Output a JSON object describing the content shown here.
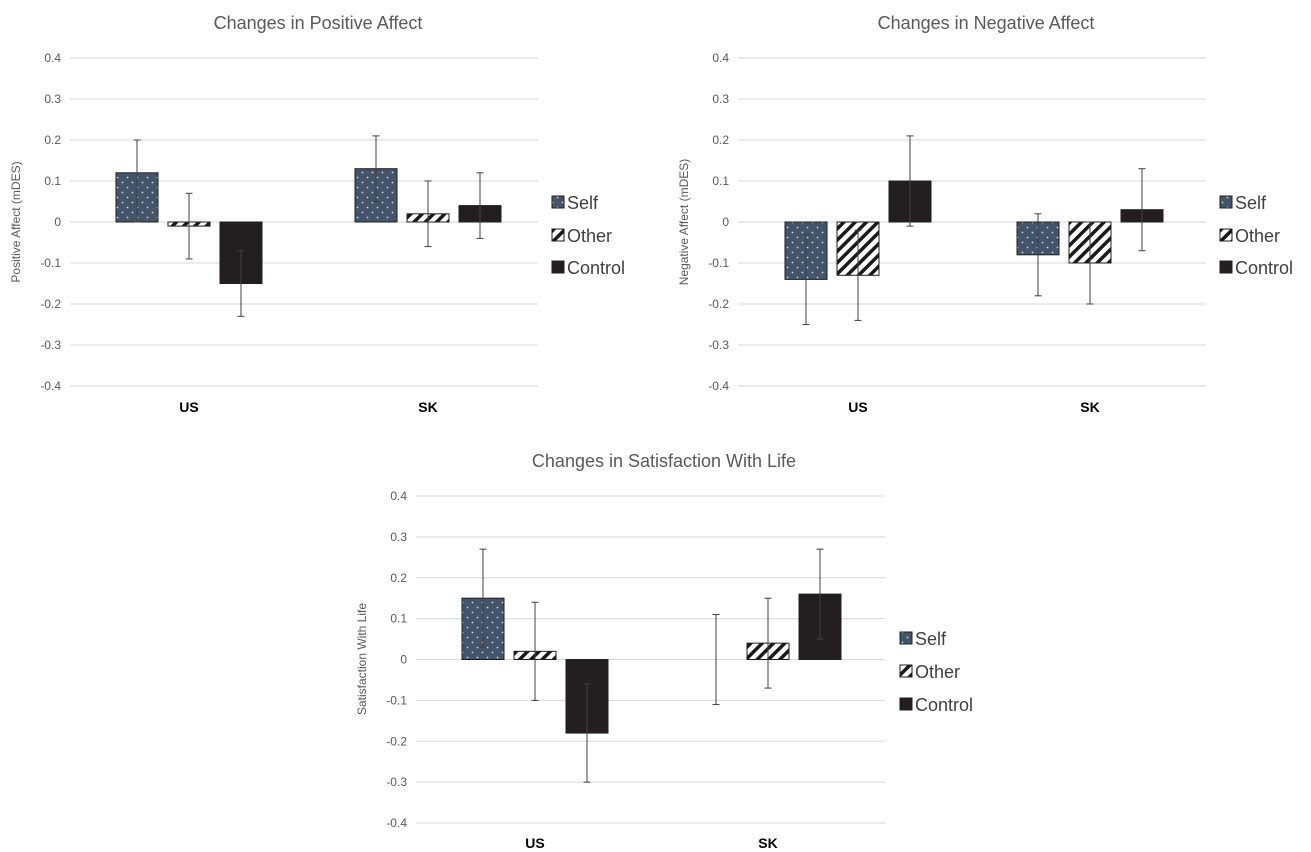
{
  "colors": {
    "self": "#44546a",
    "control": "#231f20",
    "grid": "#d9d9d9",
    "text": "#595959"
  },
  "chart_data": [
    {
      "type": "bar",
      "title": "Changes in Positive Affect",
      "ylabel": "Positive Affect (mDES)",
      "categories": [
        "US",
        "SK"
      ],
      "ylim": [
        -0.4,
        0.4
      ],
      "yticks": [
        "0.4",
        "0.3",
        "0.2",
        "0.1",
        "0",
        "-0.1",
        "-0.2",
        "-0.3",
        "-0.4"
      ],
      "grid": true,
      "legend_position": "right",
      "series": [
        {
          "name": "Self",
          "values": [
            0.12,
            0.13
          ],
          "err_low": [
            0.0,
            0.05
          ],
          "err_high": [
            0.2,
            0.21
          ]
        },
        {
          "name": "Other",
          "values": [
            -0.01,
            0.02
          ],
          "err_low": [
            -0.09,
            -0.06
          ],
          "err_high": [
            0.07,
            0.1
          ]
        },
        {
          "name": "Control",
          "values": [
            -0.15,
            0.04
          ],
          "err_low": [
            -0.23,
            -0.04
          ],
          "err_high": [
            -0.07,
            0.12
          ]
        }
      ]
    },
    {
      "type": "bar",
      "title": "Changes in Negative Affect",
      "ylabel": "Negative Affect (mDES)",
      "categories": [
        "US",
        "SK"
      ],
      "ylim": [
        -0.4,
        0.4
      ],
      "yticks": [
        "0.4",
        "0.3",
        "0.2",
        "0.1",
        "0",
        "-0.1",
        "-0.2",
        "-0.3",
        "-0.4"
      ],
      "grid": true,
      "legend_position": "right",
      "series": [
        {
          "name": "Self",
          "values": [
            -0.14,
            -0.08
          ],
          "err_low": [
            -0.25,
            -0.18
          ],
          "err_high": [
            -0.03,
            0.02
          ]
        },
        {
          "name": "Other",
          "values": [
            -0.13,
            -0.1
          ],
          "err_low": [
            -0.24,
            -0.2
          ],
          "err_high": [
            -0.02,
            0.0
          ]
        },
        {
          "name": "Control",
          "values": [
            0.1,
            0.03
          ],
          "err_low": [
            -0.01,
            -0.07
          ],
          "err_high": [
            0.21,
            0.13
          ]
        }
      ]
    },
    {
      "type": "bar",
      "title": "Changes in Satisfaction With Life",
      "ylabel": "Satisfaction With Life",
      "categories": [
        "US",
        "SK"
      ],
      "ylim": [
        -0.4,
        0.4
      ],
      "yticks": [
        "0.4",
        "0.3",
        "0.2",
        "0.1",
        "0",
        "-0.1",
        "-0.2",
        "-0.3",
        "-0.4"
      ],
      "grid": true,
      "legend_position": "right",
      "series": [
        {
          "name": "Self",
          "values": [
            0.15,
            0.0
          ],
          "err_low": [
            0.03,
            -0.11
          ],
          "err_high": [
            0.27,
            0.11
          ]
        },
        {
          "name": "Other",
          "values": [
            0.02,
            0.04
          ],
          "err_low": [
            -0.1,
            -0.07
          ],
          "err_high": [
            0.14,
            0.15
          ]
        },
        {
          "name": "Control",
          "values": [
            -0.18,
            0.16
          ],
          "err_low": [
            -0.3,
            0.05
          ],
          "err_high": [
            -0.06,
            0.27
          ]
        }
      ]
    }
  ]
}
